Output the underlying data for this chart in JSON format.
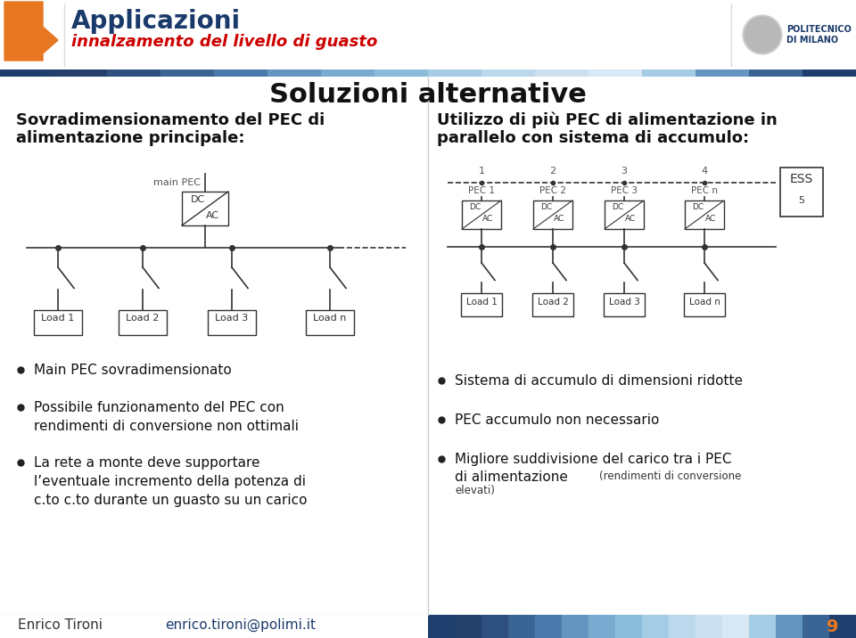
{
  "bg_color": "#ffffff",
  "header_text_color": "#1a3a6b",
  "subtitle_color": "#cc0000",
  "arrow_color": "#e87722",
  "title_main": "Applicazioni",
  "title_sub": "innalzamento del livello di guasto",
  "slide_title": "Soluzioni alternative",
  "left_heading_line1": "Sovradimensionamento del PEC di",
  "left_heading_line2": "alimentazione principale:",
  "right_heading_line1": "Utilizzo di più PEC di alimentazione in",
  "right_heading_line2": "parallelo con sistema di accumulo:",
  "left_bullets": [
    "Main PEC sovradimensionato",
    "Possibile funzionamento del PEC con\nrendimenti di conversione non ottimali",
    "La rete a monte deve supportare\nl’eventuale incremento della potenza di\nc.to c.to durante un guasto su un carico"
  ],
  "right_bullet1": "Sistema di accumulo di dimensioni ridotte",
  "right_bullet2": "PEC accumulo non necessario",
  "right_bullet3_line1": "Migliore suddivisione del carico tra i PEC",
  "right_bullet3_line2": "di alimentazione ",
  "right_bullet3_line3": "(rendimenti di conversione",
  "right_bullet3_line4": "elevati)",
  "footer_left": "Enrico Tironi",
  "footer_email": "enrico.tironi@polimi.it",
  "footer_page": "9",
  "load_labels_left": [
    "Load 1",
    "Load 2",
    "Load 3",
    "Load n"
  ],
  "load_labels_right": [
    "Load 1",
    "Load 2",
    "Load 3",
    "Load n"
  ],
  "pec_labels_right": [
    "PEC 1",
    "PEC 2",
    "PEC 3",
    "PEC n"
  ],
  "bus_numbers": [
    "1",
    "2",
    "3",
    "4"
  ],
  "ess_label": "ESS",
  "ess_number": "5",
  "header_mosaic": [
    "#1e3f6e",
    "#243f6a",
    "#2e5080",
    "#3a6494",
    "#4a7aac",
    "#6494c0",
    "#7aaad0",
    "#8abcda",
    "#a4cce4",
    "#bcd8ec",
    "#cce0f0",
    "#d8e8f4",
    "#a4cce4",
    "#6494c0",
    "#3a6494",
    "#1e3f6e"
  ],
  "footer_mosaic": [
    "#1e3f6e",
    "#243f6a",
    "#2e5080",
    "#3a6494",
    "#4a7aac",
    "#6494c0",
    "#7aaad0",
    "#8abcda",
    "#a4cce4",
    "#bcd8ec",
    "#cce0f0",
    "#d8e8f4",
    "#a4cce4",
    "#6494c0",
    "#3a6494",
    "#1e3f6e"
  ]
}
